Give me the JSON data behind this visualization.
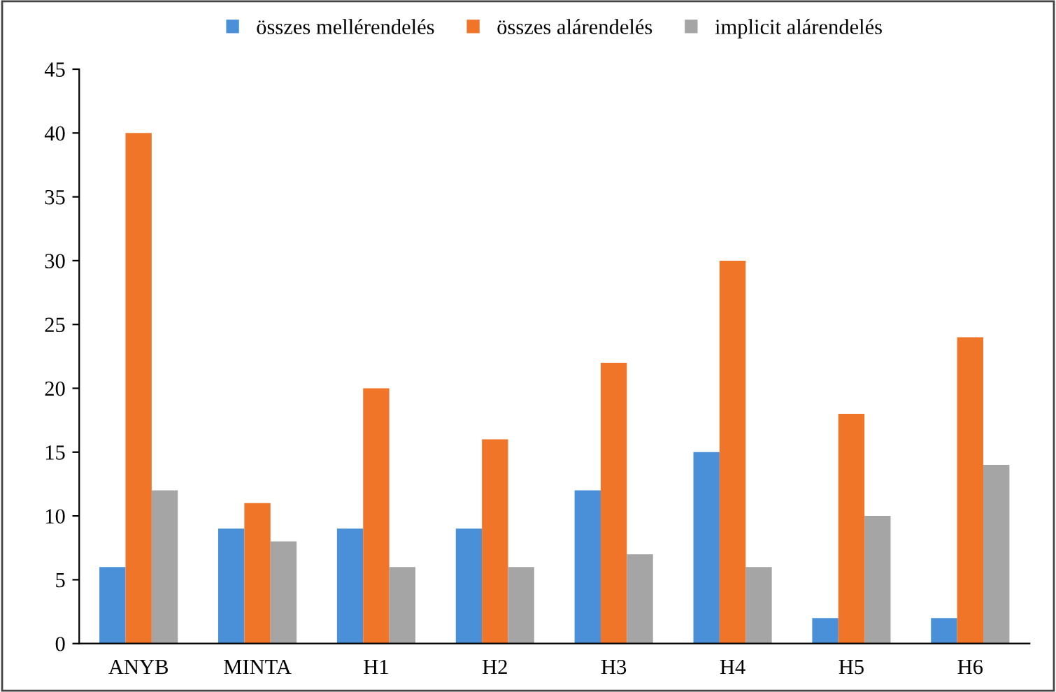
{
  "chart_data": {
    "type": "bar",
    "categories": [
      "ANYB",
      "MINTA",
      "H1",
      "H2",
      "H3",
      "H4",
      "H5",
      "H6"
    ],
    "series": [
      {
        "name": "összes mellérendelés",
        "color": "#4a90d9",
        "values": [
          6,
          9,
          9,
          9,
          12,
          15,
          2,
          2
        ]
      },
      {
        "name": "összes alárendelés",
        "color": "#f07528",
        "values": [
          40,
          11,
          20,
          16,
          22,
          30,
          18,
          24
        ]
      },
      {
        "name": "implicit alárendelés",
        "color": "#a5a5a5",
        "values": [
          12,
          8,
          6,
          6,
          7,
          6,
          10,
          14
        ]
      }
    ],
    "ylim": [
      0,
      45
    ],
    "yticks": [
      0,
      5,
      10,
      15,
      20,
      25,
      30,
      35,
      40,
      45
    ],
    "grid": false,
    "legend": "top"
  }
}
